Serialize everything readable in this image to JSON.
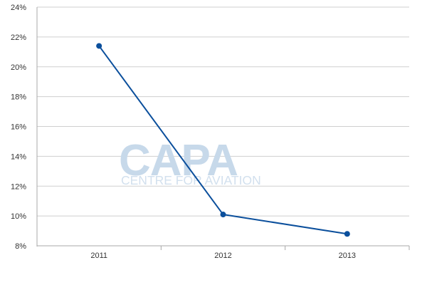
{
  "watermark": {
    "logo": "CAPA",
    "tagline": "CENTRE FOR AVIATION",
    "color": "#c7d9ea"
  },
  "chart_data": {
    "type": "line",
    "title": "",
    "xlabel": "",
    "ylabel": "",
    "categories": [
      "2011",
      "2012",
      "2013"
    ],
    "series": [
      {
        "values": [
          21.4,
          10.1,
          8.8
        ],
        "color": "#0b4f9c"
      }
    ],
    "ylim": [
      8,
      24
    ],
    "yticks": [
      8,
      10,
      12,
      14,
      16,
      18,
      20,
      22,
      24
    ],
    "ytick_format": "{v}%",
    "grid": true,
    "legend": "none"
  }
}
